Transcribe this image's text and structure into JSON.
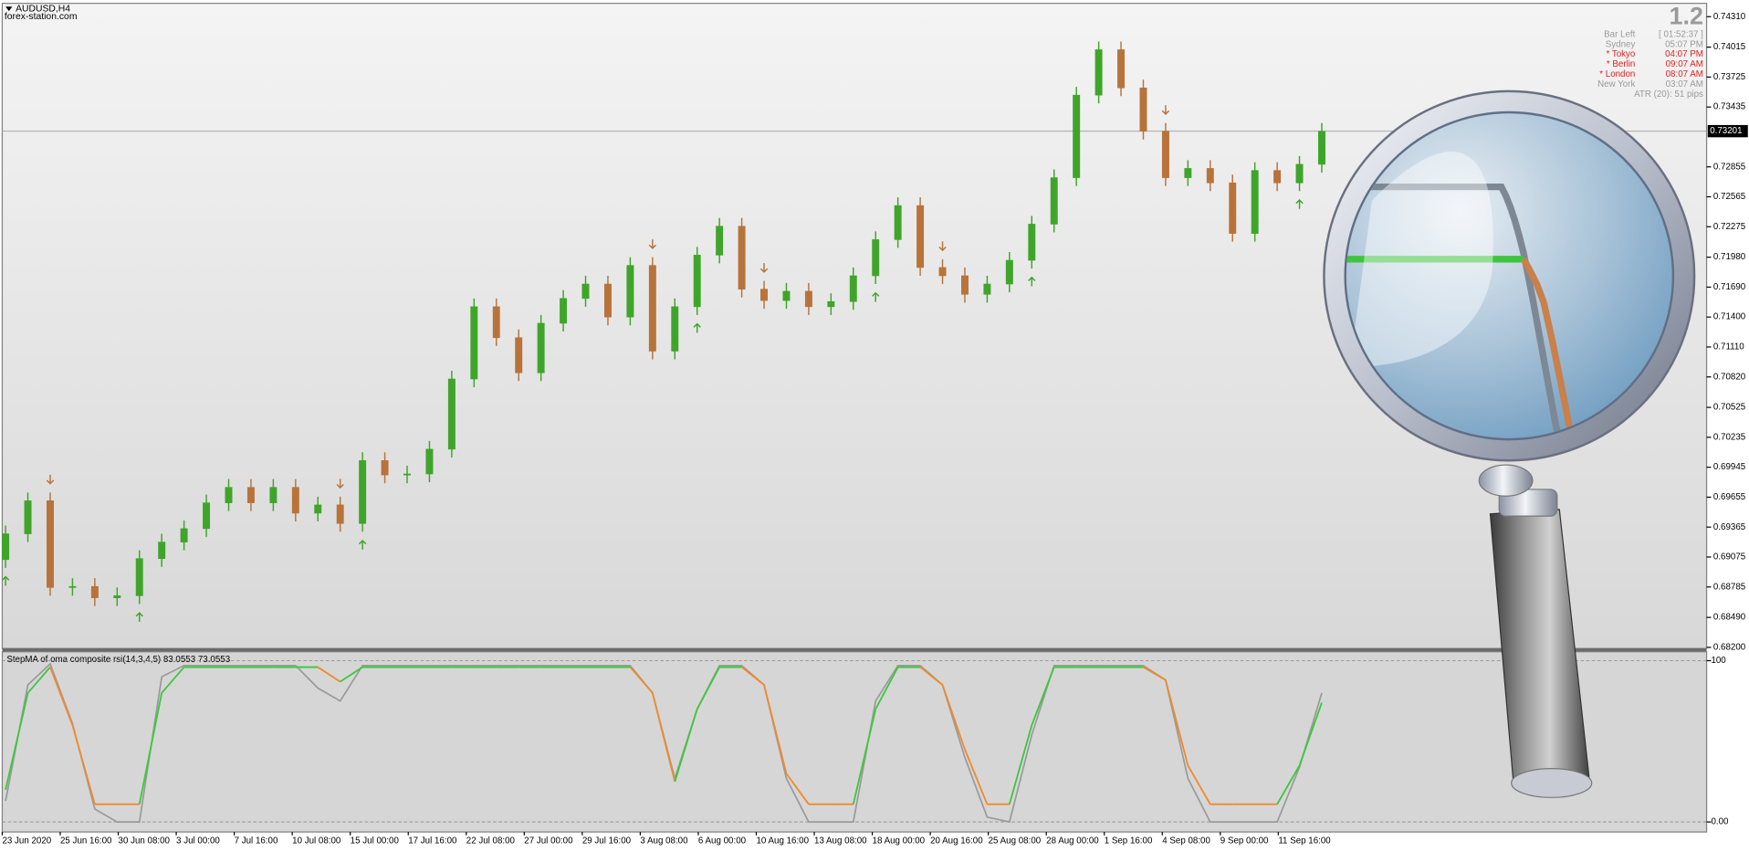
{
  "chart_data": [
    {
      "type": "candlestick",
      "symbol": "AUDUSD,H4",
      "watermark": "forex-station.com",
      "open": [
        0.6905,
        0.693,
        0.6962,
        0.6878,
        0.6879,
        0.6868,
        0.687,
        0.6906,
        0.6922,
        0.6935,
        0.696,
        0.6975,
        0.696,
        0.6975,
        0.695,
        0.6958,
        0.694,
        0.7001,
        0.6987,
        0.6988,
        0.7012,
        0.708,
        0.715,
        0.712,
        0.7086,
        0.7134,
        0.7158,
        0.7172,
        0.714,
        0.719,
        0.7107,
        0.715,
        0.72,
        0.7228,
        0.7167,
        0.7156,
        0.7165,
        0.715,
        0.7155,
        0.718,
        0.7215,
        0.7248,
        0.7188,
        0.718,
        0.7162,
        0.7172,
        0.7195,
        0.723,
        0.7275,
        0.7355,
        0.7399,
        0.7362,
        0.732,
        0.7275,
        0.7284,
        0.727,
        0.7221,
        0.7282,
        0.727,
        0.7288
      ],
      "high": [
        0.6938,
        0.697,
        0.697,
        0.6887,
        0.6887,
        0.6878,
        0.6914,
        0.693,
        0.6943,
        0.6968,
        0.6983,
        0.6983,
        0.6983,
        0.6983,
        0.6966,
        0.6966,
        0.7009,
        0.7009,
        0.6996,
        0.702,
        0.7088,
        0.7158,
        0.7158,
        0.7128,
        0.7142,
        0.7166,
        0.718,
        0.718,
        0.7198,
        0.7198,
        0.7158,
        0.7208,
        0.7236,
        0.7236,
        0.7175,
        0.7173,
        0.7173,
        0.7163,
        0.7188,
        0.7223,
        0.7256,
        0.7256,
        0.7196,
        0.7188,
        0.718,
        0.7203,
        0.7238,
        0.7283,
        0.7363,
        0.7407,
        0.7407,
        0.737,
        0.7328,
        0.7292,
        0.7292,
        0.7278,
        0.729,
        0.729,
        0.7296,
        0.7328
      ],
      "low": [
        0.6897,
        0.6922,
        0.687,
        0.687,
        0.686,
        0.686,
        0.6862,
        0.6898,
        0.6914,
        0.6927,
        0.6952,
        0.6952,
        0.6952,
        0.6942,
        0.6942,
        0.6932,
        0.6932,
        0.6979,
        0.6979,
        0.698,
        0.7004,
        0.7072,
        0.7112,
        0.7078,
        0.7078,
        0.7126,
        0.715,
        0.7132,
        0.7132,
        0.7099,
        0.7099,
        0.7142,
        0.7192,
        0.7159,
        0.7148,
        0.7148,
        0.7142,
        0.7142,
        0.7147,
        0.7172,
        0.7207,
        0.718,
        0.7172,
        0.7154,
        0.7154,
        0.7164,
        0.7187,
        0.7222,
        0.7267,
        0.7347,
        0.7354,
        0.7312,
        0.7267,
        0.7267,
        0.7262,
        0.7213,
        0.7213,
        0.7262,
        0.7262,
        0.728
      ],
      "close": [
        0.693,
        0.6962,
        0.6878,
        0.6879,
        0.6868,
        0.687,
        0.6906,
        0.6922,
        0.6935,
        0.696,
        0.6975,
        0.696,
        0.6975,
        0.695,
        0.6958,
        0.694,
        0.7001,
        0.6987,
        0.6988,
        0.7012,
        0.708,
        0.715,
        0.712,
        0.7086,
        0.7134,
        0.7158,
        0.7172,
        0.714,
        0.719,
        0.7107,
        0.715,
        0.72,
        0.7228,
        0.7167,
        0.7156,
        0.7165,
        0.715,
        0.7155,
        0.718,
        0.7215,
        0.7248,
        0.7188,
        0.718,
        0.7162,
        0.7172,
        0.7195,
        0.723,
        0.7275,
        0.7355,
        0.7399,
        0.7362,
        0.732,
        0.7275,
        0.7284,
        0.727,
        0.7221,
        0.7282,
        0.727,
        0.7288,
        0.732
      ],
      "up_color": "#3fa52a",
      "down_color": "#b8733a",
      "ylim": [
        0.682,
        0.7431
      ],
      "yticks": [
        {
          "value": 0.7431,
          "label": "0.74310"
        },
        0.74015,
        0.73725,
        0.73435,
        0.72855,
        0.72565,
        0.72275,
        {
          "value": 0.7198,
          "label": "0.71980"
        },
        {
          "value": 0.7169,
          "label": "0.71690"
        },
        {
          "value": 0.714,
          "label": "0.71400"
        },
        {
          "value": 0.7111,
          "label": "0.71110"
        },
        {
          "value": 0.7082,
          "label": "0.70820"
        },
        0.70525,
        0.70235,
        0.69945,
        0.69655,
        0.69365,
        0.69075,
        0.68785,
        {
          "value": 0.6849,
          "label": "0.68490"
        },
        {
          "value": 0.682,
          "label": "0.68200"
        }
      ],
      "grid": false,
      "current_price": 0.73201,
      "time_labels": [
        "23 Jun 2020",
        "25 Jun 16:00",
        "30 Jun 08:00",
        "3 Jul 00:00",
        "7 Jul 16:00",
        "10 Jul 08:00",
        "15 Jul 00:00",
        "17 Jul 16:00",
        "22 Jul 08:00",
        "27 Jul 00:00",
        "29 Jul 16:00",
        "3 Aug 08:00",
        "6 Aug 00:00",
        "10 Aug 16:00",
        "13 Aug 08:00",
        "18 Aug 00:00",
        "20 Aug 16:00",
        "25 Aug 08:00",
        "28 Aug 00:00",
        "1 Sep 16:00",
        "4 Sep 08:00",
        "9 Sep 00:00",
        "11 Sep 16:00"
      ],
      "signals": [
        {
          "at": 0,
          "dir": "up"
        },
        {
          "at": 2,
          "dir": "down"
        },
        {
          "at": 6,
          "dir": "up"
        },
        {
          "at": 15,
          "dir": "down"
        },
        {
          "at": 16,
          "dir": "up"
        },
        {
          "at": 29,
          "dir": "down"
        },
        {
          "at": 31,
          "dir": "up"
        },
        {
          "at": 34,
          "dir": "down"
        },
        {
          "at": 39,
          "dir": "up"
        },
        {
          "at": 42,
          "dir": "down"
        },
        {
          "at": 46,
          "dir": "up"
        },
        {
          "at": 52,
          "dir": "down"
        },
        {
          "at": 58,
          "dir": "up"
        }
      ]
    },
    {
      "type": "line",
      "title": "StepMA of oma composite rsi(14,3,4,5) 83.0553 73.0553",
      "series": [
        {
          "color": "#9a9a9a",
          "values": [
            13,
            85,
            98,
            61,
            8,
            0,
            0,
            90,
            97,
            97,
            97,
            97,
            97,
            97,
            83,
            75,
            97,
            97,
            97,
            97,
            97,
            97,
            97,
            97,
            97,
            97,
            97,
            97,
            97,
            80,
            27,
            70,
            97,
            97,
            85,
            27,
            0,
            0,
            0,
            75,
            97,
            97,
            85,
            40,
            3,
            0,
            54,
            97,
            97,
            97,
            97,
            97,
            88,
            27,
            0,
            0,
            0,
            0,
            34,
            80
          ]
        },
        {
          "up_color": "#3cc83c",
          "down_color": "#f08a2c",
          "values": [
            20,
            80,
            96,
            60,
            11,
            11,
            11,
            80,
            96,
            96,
            96,
            96,
            96,
            96,
            96,
            87,
            96,
            96,
            96,
            96,
            96,
            96,
            96,
            96,
            96,
            96,
            96,
            96,
            96,
            80,
            25,
            70,
            96,
            96,
            85,
            30,
            11,
            11,
            11,
            70,
            96,
            96,
            85,
            45,
            11,
            11,
            60,
            96,
            96,
            96,
            96,
            96,
            88,
            35,
            11,
            11,
            11,
            11,
            35,
            74
          ]
        }
      ],
      "ylim": [
        0,
        100
      ],
      "yticks": [
        100,
        {
          "value": 0,
          "label": "0.00"
        }
      ]
    }
  ],
  "info_panel": {
    "big": "1.2",
    "rows": [
      {
        "label": "Bar Left",
        "value": "[ 01:52:37 ]",
        "color": "#9a9a9a"
      },
      {
        "label": "Sydney",
        "value": "05:07 PM",
        "color": "#9a9a9a"
      },
      {
        "label": "* Tokyo",
        "value": "04:07 PM",
        "color": "#e02020"
      },
      {
        "label": "* Berlin",
        "value": "09:07 AM",
        "color": "#e02020"
      },
      {
        "label": "* London",
        "value": "08:07 AM",
        "color": "#e02020"
      },
      {
        "label": "New York",
        "value": "03:07 AM",
        "color": "#9a9a9a"
      }
    ],
    "atr": "ATR (20): 51 pips"
  }
}
